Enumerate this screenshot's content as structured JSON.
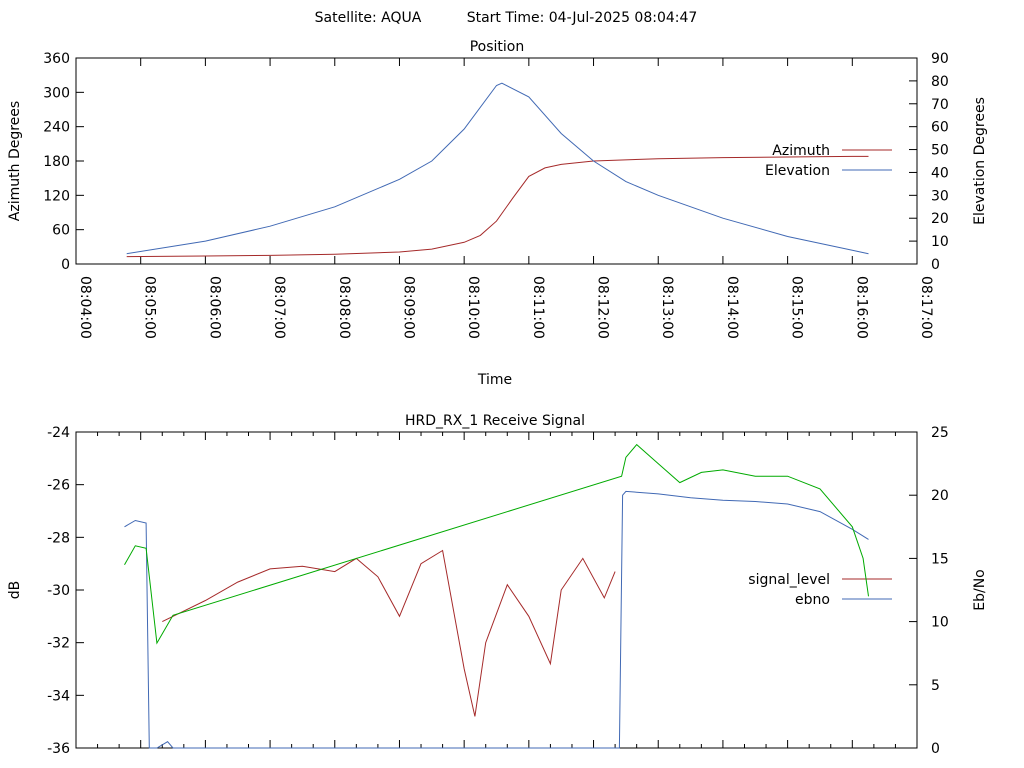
{
  "header": {
    "satellite": "Satellite: AQUA",
    "start_time": "Start Time: 04-Jul-2025 08:04:47"
  },
  "chart_data": [
    {
      "type": "line",
      "title": "Position",
      "xlabel": "Time",
      "ylabel": "Azimuth Degrees",
      "y2label": "Elevation Degrees",
      "xlim": [
        "08:04:00",
        "08:17:00"
      ],
      "ylim": [
        0,
        360
      ],
      "y2lim": [
        0,
        90
      ],
      "x_ticks": [
        "08:04:00",
        "08:05:00",
        "08:06:00",
        "08:07:00",
        "08:08:00",
        "08:09:00",
        "08:10:00",
        "08:11:00",
        "08:12:00",
        "08:13:00",
        "08:14:00",
        "08:15:00",
        "08:16:00",
        "08:17:00"
      ],
      "y_ticks": [
        "0",
        "60",
        "120",
        "180",
        "240",
        "300",
        "360"
      ],
      "y2_ticks": [
        "0",
        "10",
        "20",
        "30",
        "40",
        "50",
        "60",
        "70",
        "80",
        "90"
      ],
      "legend_position": "right",
      "series": [
        {
          "name": "Azimuth",
          "axis": "left",
          "color": "#a52a2a",
          "x": [
            "08:04:47",
            "08:06:00",
            "08:07:00",
            "08:08:00",
            "08:09:00",
            "08:09:30",
            "08:10:00",
            "08:10:15",
            "08:10:30",
            "08:10:45",
            "08:11:00",
            "08:11:15",
            "08:11:30",
            "08:12:00",
            "08:13:00",
            "08:14:00",
            "08:15:00",
            "08:16:00",
            "08:16:15"
          ],
          "y": [
            13,
            14,
            15,
            17,
            21,
            26,
            38,
            50,
            75,
            115,
            153,
            168,
            174,
            180,
            184,
            186,
            187,
            188,
            188
          ]
        },
        {
          "name": "Elevation",
          "axis": "right",
          "color": "#4169b4",
          "x": [
            "08:04:47",
            "08:06:00",
            "08:07:00",
            "08:08:00",
            "08:09:00",
            "08:09:30",
            "08:10:00",
            "08:10:30",
            "08:10:35",
            "08:11:00",
            "08:11:30",
            "08:12:00",
            "08:12:30",
            "08:13:00",
            "08:14:00",
            "08:15:00",
            "08:16:00",
            "08:16:15"
          ],
          "y": [
            4.5,
            10,
            16.5,
            25,
            37,
            45,
            59,
            78,
            79,
            73,
            57,
            45,
            36,
            30,
            20,
            12,
            6,
            4.5
          ]
        }
      ]
    },
    {
      "type": "line",
      "title": "HRD_RX_1 Receive Signal",
      "ylabel": "dB",
      "y2label": "Eb/No",
      "xlim": [
        "08:04:00",
        "08:17:00"
      ],
      "ylim": [
        -36,
        -24
      ],
      "y2lim": [
        0,
        25
      ],
      "y_ticks": [
        "-24",
        "-26",
        "-28",
        "-30",
        "-32",
        "-34",
        "-36"
      ],
      "y2_ticks": [
        "0",
        "5",
        "10",
        "15",
        "20",
        "25"
      ],
      "legend_position": "right",
      "series": [
        {
          "name": "signal_level",
          "axis": "left",
          "color": "#a52a2a",
          "x": [
            "08:05:20",
            "08:05:40",
            "08:06:00",
            "08:06:30",
            "08:07:00",
            "08:07:30",
            "08:08:00",
            "08:08:20",
            "08:08:40",
            "08:09:00",
            "08:09:20",
            "08:09:40",
            "08:10:00",
            "08:10:10",
            "08:10:20",
            "08:10:40",
            "08:11:00",
            "08:11:20",
            "08:11:30",
            "08:11:50",
            "08:12:10",
            "08:12:20"
          ],
          "y": [
            -31.2,
            -30.8,
            -30.4,
            -29.7,
            -29.2,
            -29.1,
            -29.3,
            -28.8,
            -29.5,
            -31.0,
            -29.0,
            -28.5,
            -33.0,
            -34.8,
            -32.0,
            -29.8,
            -31.0,
            -32.8,
            -30.0,
            -28.8,
            -30.3,
            -29.3
          ]
        },
        {
          "name": "ebno",
          "axis": "right",
          "color": "#4169b4",
          "x": [
            "08:04:45",
            "08:04:55",
            "08:05:05",
            "08:05:08",
            "08:05:15",
            "08:05:25",
            "08:05:30",
            "08:12:24",
            "08:12:27",
            "08:12:30",
            "08:13:00",
            "08:13:30",
            "08:14:00",
            "08:14:30",
            "08:15:00",
            "08:15:30",
            "08:16:00",
            "08:16:15"
          ],
          "y": [
            17.5,
            18.0,
            17.8,
            0,
            0,
            0.5,
            0,
            0,
            20.0,
            20.3,
            20.1,
            19.8,
            19.6,
            19.5,
            19.3,
            18.7,
            17.3,
            16.5
          ]
        },
        {
          "name": "",
          "axis": "right",
          "color": "#00aa00",
          "x": [
            "08:04:45",
            "08:04:55",
            "08:05:05",
            "08:05:15",
            "08:05:30",
            "08:12:26",
            "08:12:30",
            "08:12:40",
            "08:13:00",
            "08:13:20",
            "08:13:40",
            "08:14:00",
            "08:14:30",
            "08:15:00",
            "08:15:30",
            "08:16:00",
            "08:16:10",
            "08:16:15"
          ],
          "y": [
            14.5,
            16.0,
            15.8,
            8.3,
            10.5,
            21.5,
            23.0,
            24.0,
            22.5,
            21.0,
            21.8,
            22.0,
            21.5,
            21.5,
            20.5,
            17.5,
            15.0,
            12.0
          ]
        }
      ]
    }
  ]
}
